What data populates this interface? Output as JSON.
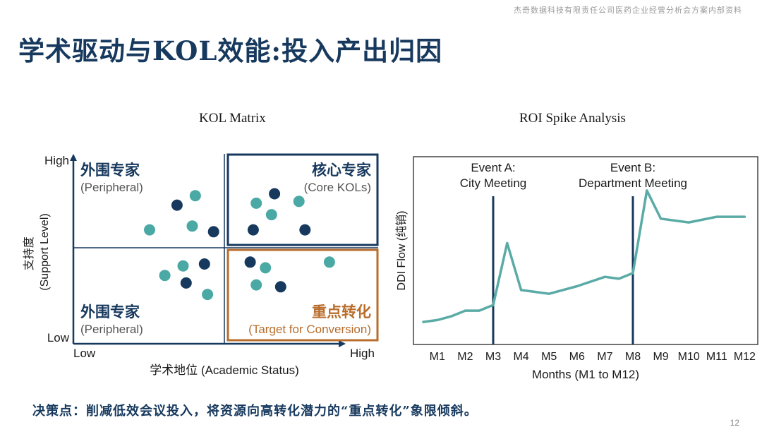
{
  "header_note": "杰奇数据科技有限责任公司医药企业经营分析会方案内部资料",
  "page_title": "学术驱动与KOL效能:投入产出归因",
  "footer_note": "决策点：削减低效会议投入，将资源向高转化潜力的“重点转化”象限倾斜。",
  "page_number": "12",
  "colors": {
    "navy": "#17395e",
    "teal": "#4aa9a4",
    "orange": "#b86d2c",
    "line": "#5aaba6"
  },
  "chart_data": [
    {
      "type": "scatter",
      "title": "KOL Matrix",
      "xlabel": "学术地位 (Academic Status)",
      "ylabel": "支持度\n(Support Level)",
      "x_ticks": {
        "low": "Low",
        "high": "High"
      },
      "y_ticks": {
        "low": "Low",
        "high": "High"
      },
      "xlim": [
        0,
        10
      ],
      "ylim": [
        0,
        10
      ],
      "quadrants": [
        {
          "name": "外围专家",
          "subtitle": "(Peripheral)",
          "position": "top-left"
        },
        {
          "name": "核心专家",
          "subtitle": "(Core KOLs)",
          "position": "top-right",
          "highlight": "navy"
        },
        {
          "name": "外围专家",
          "subtitle": "(Peripheral)",
          "position": "bottom-left"
        },
        {
          "name": "重点转化",
          "subtitle": "(Target for Conversion)",
          "position": "bottom-right",
          "highlight": "orange"
        }
      ],
      "series": [
        {
          "group": "navy",
          "points": [
            [
              3.4,
              7.3
            ],
            [
              4.6,
              5.9
            ],
            [
              6.6,
              7.9
            ],
            [
              5.9,
              6.0
            ],
            [
              7.6,
              6.0
            ],
            [
              4.3,
              4.2
            ],
            [
              3.7,
              3.2
            ],
            [
              5.8,
              4.3
            ],
            [
              6.8,
              3.0
            ]
          ]
        },
        {
          "group": "teal",
          "points": [
            [
              2.5,
              6.0
            ],
            [
              4.0,
              7.8
            ],
            [
              3.9,
              6.2
            ],
            [
              6.0,
              7.4
            ],
            [
              6.5,
              6.8
            ],
            [
              7.4,
              7.5
            ],
            [
              3.0,
              3.6
            ],
            [
              3.6,
              4.1
            ],
            [
              4.4,
              2.6
            ],
            [
              6.3,
              4.0
            ],
            [
              6.0,
              3.1
            ],
            [
              8.4,
              4.3
            ]
          ]
        }
      ]
    },
    {
      "type": "line",
      "title": "ROI Spike Analysis",
      "xlabel": "Months (M1 to M12)",
      "ylabel": "DDI Flow (纯销)",
      "categories": [
        "M1",
        "M2",
        "M3",
        "M4",
        "M5",
        "M6",
        "M7",
        "M8",
        "M9",
        "M10",
        "M11",
        "M12"
      ],
      "ylim": [
        0,
        100
      ],
      "x": [
        0.5,
        1.0,
        1.5,
        2.0,
        2.5,
        3.0,
        3.5,
        4.0,
        4.5,
        5.0,
        6.0,
        7.0,
        7.5,
        8.0,
        8.5,
        9.0,
        10.0,
        11.0,
        12.0
      ],
      "values": [
        12,
        13,
        15,
        18,
        18,
        21,
        54,
        29,
        28,
        27,
        31,
        36,
        35,
        38,
        82,
        67,
        65,
        68,
        68
      ],
      "annotations": [
        {
          "x": 3,
          "line1": "Event A:",
          "line2": "City Meeting"
        },
        {
          "x": 8,
          "line1": "Event B:",
          "line2": "Department Meeting"
        }
      ]
    }
  ]
}
